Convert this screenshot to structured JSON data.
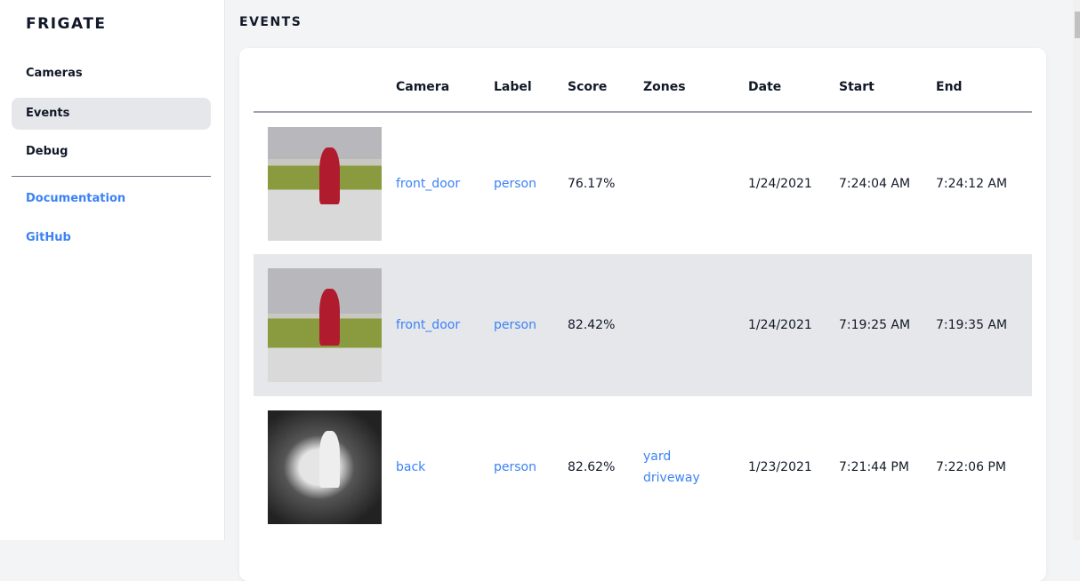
{
  "sidebar": {
    "brand": "FRIGATE",
    "items": [
      {
        "label": "Cameras"
      },
      {
        "label": "Events"
      },
      {
        "label": "Debug"
      }
    ],
    "links": [
      {
        "label": "Documentation"
      },
      {
        "label": "GitHub"
      }
    ]
  },
  "header": {
    "title": "EVENTS"
  },
  "table": {
    "columns": [
      "",
      "Camera",
      "Label",
      "Score",
      "Zones",
      "Date",
      "Start",
      "End"
    ],
    "rows": [
      {
        "camera": "front_door",
        "label": "person",
        "score": "76.17%",
        "zones": [
          "",
          ""
        ],
        "date": "1/24/2021",
        "start": "7:24:04 AM",
        "end": "7:24:12 AM"
      },
      {
        "camera": "front_door",
        "label": "person",
        "score": "82.42%",
        "zones": [
          "",
          ""
        ],
        "date": "1/24/2021",
        "start": "7:19:25 AM",
        "end": "7:19:35 AM"
      },
      {
        "camera": "back",
        "label": "person",
        "score": "82.62%",
        "zones": [
          "yard",
          "driveway"
        ],
        "date": "1/23/2021",
        "start": "7:21:44 PM",
        "end": "7:22:06 PM"
      }
    ]
  },
  "colors": {
    "accent": "#3b82f6",
    "active_bg": "#e5e7eb"
  }
}
